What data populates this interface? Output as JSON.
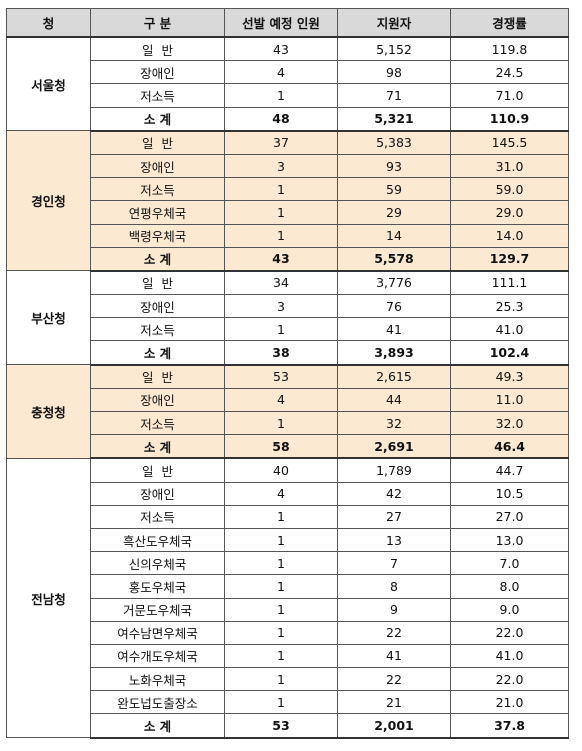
{
  "table": {
    "header": [
      "청",
      "구 분",
      "선발 예정 인원",
      "지원자",
      "경쟁률"
    ],
    "groups": [
      {
        "name": "서울청",
        "rows": [
          [
            "일  반",
            "43",
            "5,152",
            "119.8"
          ],
          [
            "장애인",
            "4",
            "98",
            "24.5"
          ],
          [
            "저소득",
            "1",
            "71",
            "71.0"
          ],
          [
            "소 계",
            "48",
            "5,321",
            "110.9"
          ]
        ]
      },
      {
        "name": "경인청",
        "rows": [
          [
            "일  반",
            "37",
            "5,383",
            "145.5"
          ],
          [
            "장애인",
            "3",
            "93",
            "31.0"
          ],
          [
            "저소득",
            "1",
            "59",
            "59.0"
          ],
          [
            "연평우체국",
            "1",
            "29",
            "29.0"
          ],
          [
            "백령우체국",
            "1",
            "14",
            "14.0"
          ],
          [
            "소 계",
            "43",
            "5,578",
            "129.7"
          ]
        ]
      },
      {
        "name": "부산청",
        "rows": [
          [
            "일  반",
            "34",
            "3,776",
            "111.1"
          ],
          [
            "장애인",
            "3",
            "76",
            "25.3"
          ],
          [
            "저소득",
            "1",
            "41",
            "41.0"
          ],
          [
            "소 계",
            "38",
            "3,893",
            "102.4"
          ]
        ]
      },
      {
        "name": "충청청",
        "rows": [
          [
            "일  반",
            "53",
            "2,615",
            "49.3"
          ],
          [
            "장애인",
            "4",
            "44",
            "11.0"
          ],
          [
            "저소득",
            "1",
            "32",
            "32.0"
          ],
          [
            "소 계",
            "58",
            "2,691",
            "46.4"
          ]
        ]
      },
      {
        "name": "전남청",
        "rows": [
          [
            "일  반",
            "40",
            "1,789",
            "44.7"
          ],
          [
            "장애인",
            "4",
            "42",
            "10.5"
          ],
          [
            "저소득",
            "1",
            "27",
            "27.0"
          ],
          [
            "흑산도우체국",
            "1",
            "13",
            "13.0"
          ],
          [
            "신의우체국",
            "1",
            "7",
            "7.0"
          ],
          [
            "홍도우체국",
            "1",
            "8",
            "8.0"
          ],
          [
            "거문도우체국",
            "1",
            "9",
            "9.0"
          ],
          [
            "여수남면우체국",
            "1",
            "22",
            "22.0"
          ],
          [
            "여수개도우체국",
            "1",
            "41",
            "41.0"
          ],
          [
            "노화우체국",
            "1",
            "22",
            "22.0"
          ],
          [
            "완도넙도출장소",
            "1",
            "21",
            "21.0"
          ],
          [
            "소 계",
            "53",
            "2,001",
            "37.8"
          ]
        ]
      }
    ]
  }
}
